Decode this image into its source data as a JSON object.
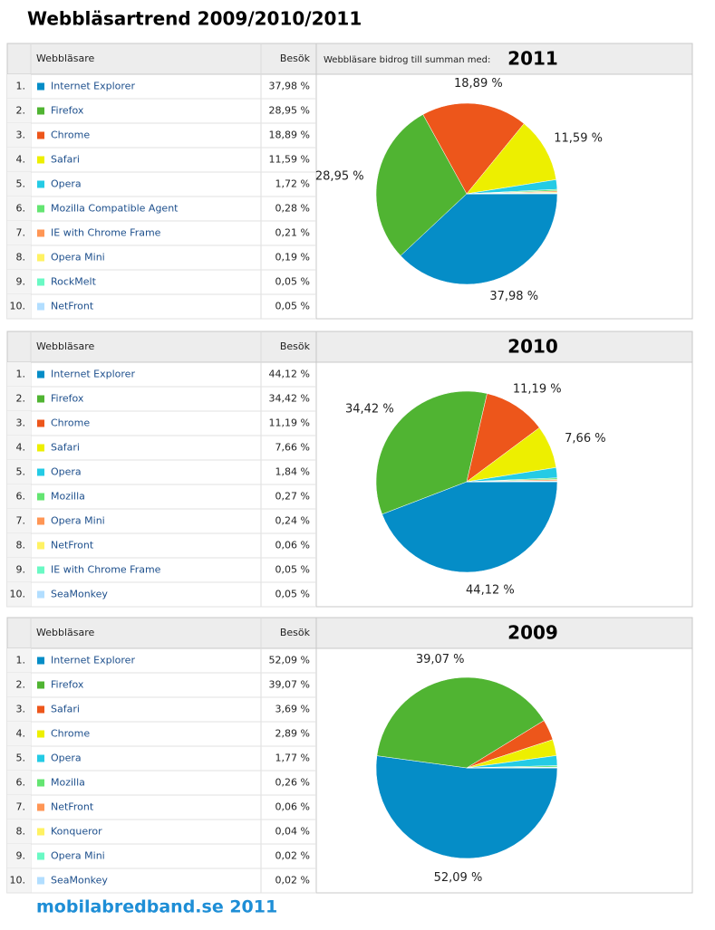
{
  "title": "Webbläsartrend 2009/2010/2011",
  "footer": "mobilabredband.se 2011",
  "tables": [
    {
      "header": {
        "name": "Webbläsare",
        "value": "Besök",
        "note": "Webbläsare bidrog till summan med:"
      },
      "ranks": [
        "1.",
        "2.",
        "3.",
        "4.",
        "5.",
        "6.",
        "7.",
        "8.",
        "9.",
        "10."
      ]
    },
    {
      "header": {
        "name": "Webbläsare",
        "value": "Besök"
      },
      "ranks": [
        "1.",
        "2.",
        "3.",
        "4.",
        "5.",
        "6.",
        "7.",
        "8.",
        "9.",
        "10."
      ]
    },
    {
      "header": {
        "name": "Webbläsare",
        "value": "Besök"
      },
      "ranks": [
        "1.",
        "2.",
        "3.",
        "4.",
        "5.",
        "6.",
        "7.",
        "8.",
        "9.",
        "10."
      ]
    }
  ],
  "chart_data": [
    {
      "type": "pie",
      "title": "2011",
      "categories": [
        "Internet Explorer",
        "Firefox",
        "Chrome",
        "Safari",
        "Opera",
        "Mozilla Compatible Agent",
        "IE with Chrome Frame",
        "Opera Mini",
        "RockMelt",
        "NetFront"
      ],
      "values": [
        37.98,
        28.95,
        18.89,
        11.59,
        1.72,
        0.28,
        0.21,
        0.19,
        0.05,
        0.05
      ],
      "value_labels": [
        "37,98 %",
        "28,95 %",
        "18,89 %",
        "11,59 %",
        "1,72 %",
        "0,28 %",
        "0,21 %",
        "0,19 %",
        "0,05 %",
        "0,05 %"
      ],
      "colors": [
        "#058dc7",
        "#50b432",
        "#ed561b",
        "#edef00",
        "#24cbe5",
        "#64e572",
        "#ff9655",
        "#fff263",
        "#6af9c4",
        "#b2deff"
      ]
    },
    {
      "type": "pie",
      "title": "2010",
      "categories": [
        "Internet Explorer",
        "Firefox",
        "Chrome",
        "Safari",
        "Opera",
        "Mozilla",
        "Opera Mini",
        "NetFront",
        "IE with Chrome Frame",
        "SeaMonkey"
      ],
      "values": [
        44.12,
        34.42,
        11.19,
        7.66,
        1.84,
        0.27,
        0.24,
        0.06,
        0.05,
        0.05
      ],
      "value_labels": [
        "44,12 %",
        "34,42 %",
        "11,19 %",
        "7,66 %",
        "1,84 %",
        "0,27 %",
        "0,24 %",
        "0,06 %",
        "0,05 %",
        "0,05 %"
      ],
      "colors": [
        "#058dc7",
        "#50b432",
        "#ed561b",
        "#edef00",
        "#24cbe5",
        "#64e572",
        "#ff9655",
        "#fff263",
        "#6af9c4",
        "#b2deff"
      ]
    },
    {
      "type": "pie",
      "title": "2009",
      "categories": [
        "Internet Explorer",
        "Firefox",
        "Safari",
        "Chrome",
        "Opera",
        "Mozilla",
        "NetFront",
        "Konqueror",
        "Opera Mini",
        "SeaMonkey"
      ],
      "values": [
        52.09,
        39.07,
        3.69,
        2.89,
        1.77,
        0.26,
        0.06,
        0.04,
        0.02,
        0.02
      ],
      "value_labels": [
        "52,09 %",
        "39,07 %",
        "3,69 %",
        "2,89 %",
        "1,77 %",
        "0,26 %",
        "0,06 %",
        "0,04 %",
        "0,02 %",
        "0,02 %"
      ],
      "colors": [
        "#058dc7",
        "#50b432",
        "#ed561b",
        "#edef00",
        "#24cbe5",
        "#64e572",
        "#ff9655",
        "#fff263",
        "#6af9c4",
        "#b2deff"
      ]
    }
  ]
}
